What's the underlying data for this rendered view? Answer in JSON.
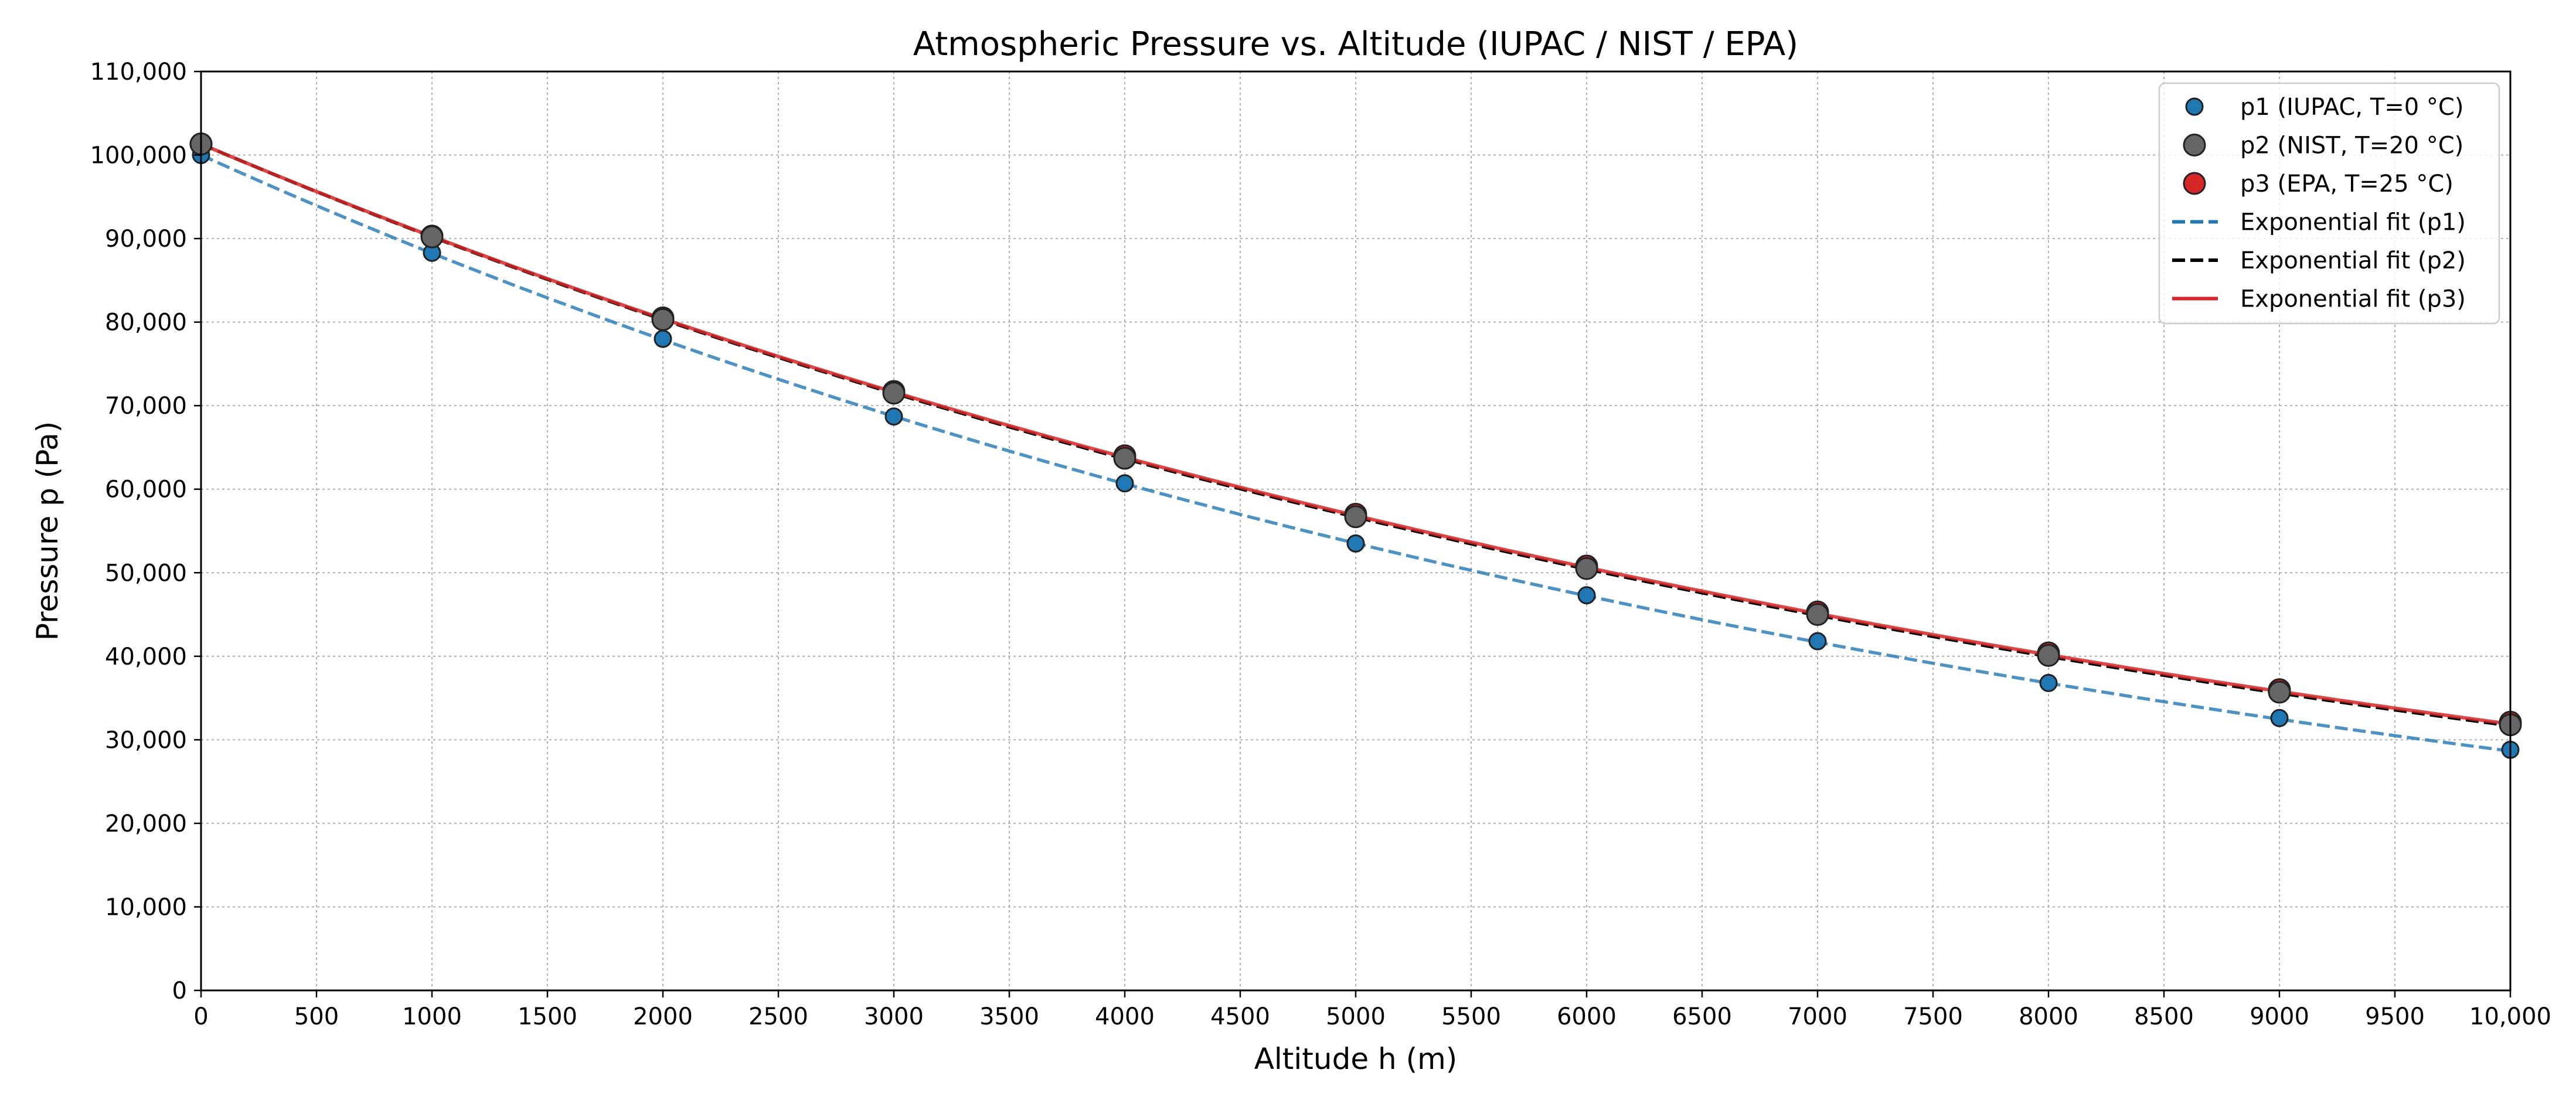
{
  "chart_data": {
    "type": "scatter",
    "title": "Atmospheric Pressure vs. Altitude (IUPAC / NIST / EPA)",
    "xlabel": "Altitude h (m)",
    "ylabel": "Pressure p (Pa)",
    "xlim": [
      0,
      10000
    ],
    "ylim": [
      0,
      110000
    ],
    "grid": true,
    "legend_position": "top-right",
    "x_ticks": [
      0,
      500,
      1000,
      1500,
      2000,
      2500,
      3000,
      3500,
      4000,
      4500,
      5000,
      5500,
      6000,
      6500,
      7000,
      7500,
      8000,
      8500,
      9000,
      9500,
      10000
    ],
    "x_tick_labels": [
      "0",
      "500",
      "1000",
      "1500",
      "2000",
      "2500",
      "3000",
      "3500",
      "4000",
      "4500",
      "5000",
      "5500",
      "6000",
      "6500",
      "7000",
      "7500",
      "8000",
      "8500",
      "9000",
      "9500",
      "10,000"
    ],
    "y_ticks": [
      0,
      10000,
      20000,
      30000,
      40000,
      50000,
      60000,
      70000,
      80000,
      90000,
      100000,
      110000
    ],
    "y_tick_labels": [
      "0",
      "10,000",
      "20,000",
      "30,000",
      "40,000",
      "50,000",
      "60,000",
      "70,000",
      "80,000",
      "90,000",
      "100,000",
      "110,000"
    ],
    "x": [
      0,
      1000,
      2000,
      3000,
      4000,
      5000,
      6000,
      7000,
      8000,
      9000,
      10000
    ],
    "scatter_series": [
      {
        "name": "p1 (IUPAC, T=0 °C)",
        "color": "#1f77b4",
        "values": [
          100000,
          88300,
          78000,
          68700,
          60700,
          53500,
          47300,
          41800,
          36800,
          32600,
          28800
        ]
      },
      {
        "name": "p3 (EPA, T=25 °C)",
        "color": "#d62728",
        "values": [
          101325,
          90300,
          80500,
          71700,
          64000,
          57000,
          50800,
          45300,
          40400,
          36000,
          32100
        ]
      },
      {
        "name": "p2 (NIST, T=20 °C)",
        "color": "#666666",
        "values": [
          101325,
          90200,
          80300,
          71500,
          63700,
          56700,
          50500,
          45000,
          40100,
          35700,
          31800
        ]
      }
    ],
    "fit_series": [
      {
        "name": "Exponential fit (p1)",
        "color": "#1f77b4",
        "style": "dashed",
        "p0": 100000,
        "scale_height": 8000
      },
      {
        "name": "Exponential fit (p2)",
        "color": "#000000",
        "style": "dashed",
        "p0": 101325,
        "scale_height": 8600
      },
      {
        "name": "Exponential fit (p3)",
        "color": "#d62728",
        "style": "solid",
        "p0": 101325,
        "scale_height": 8650
      }
    ],
    "legend": [
      {
        "label": "p1 (IUPAC, T=0 °C)",
        "kind": "marker",
        "color": "#1f77b4"
      },
      {
        "label": "p2 (NIST, T=20 °C)",
        "kind": "marker",
        "color": "#666666"
      },
      {
        "label": "p3 (EPA, T=25 °C)",
        "kind": "marker",
        "color": "#d62728"
      },
      {
        "label": "Exponential fit (p1)",
        "kind": "line",
        "color": "#1f77b4",
        "style": "dashed"
      },
      {
        "label": "Exponential fit (p2)",
        "kind": "line",
        "color": "#000000",
        "style": "dashed"
      },
      {
        "label": "Exponential fit (p3)",
        "kind": "line",
        "color": "#d62728",
        "style": "solid"
      }
    ]
  }
}
